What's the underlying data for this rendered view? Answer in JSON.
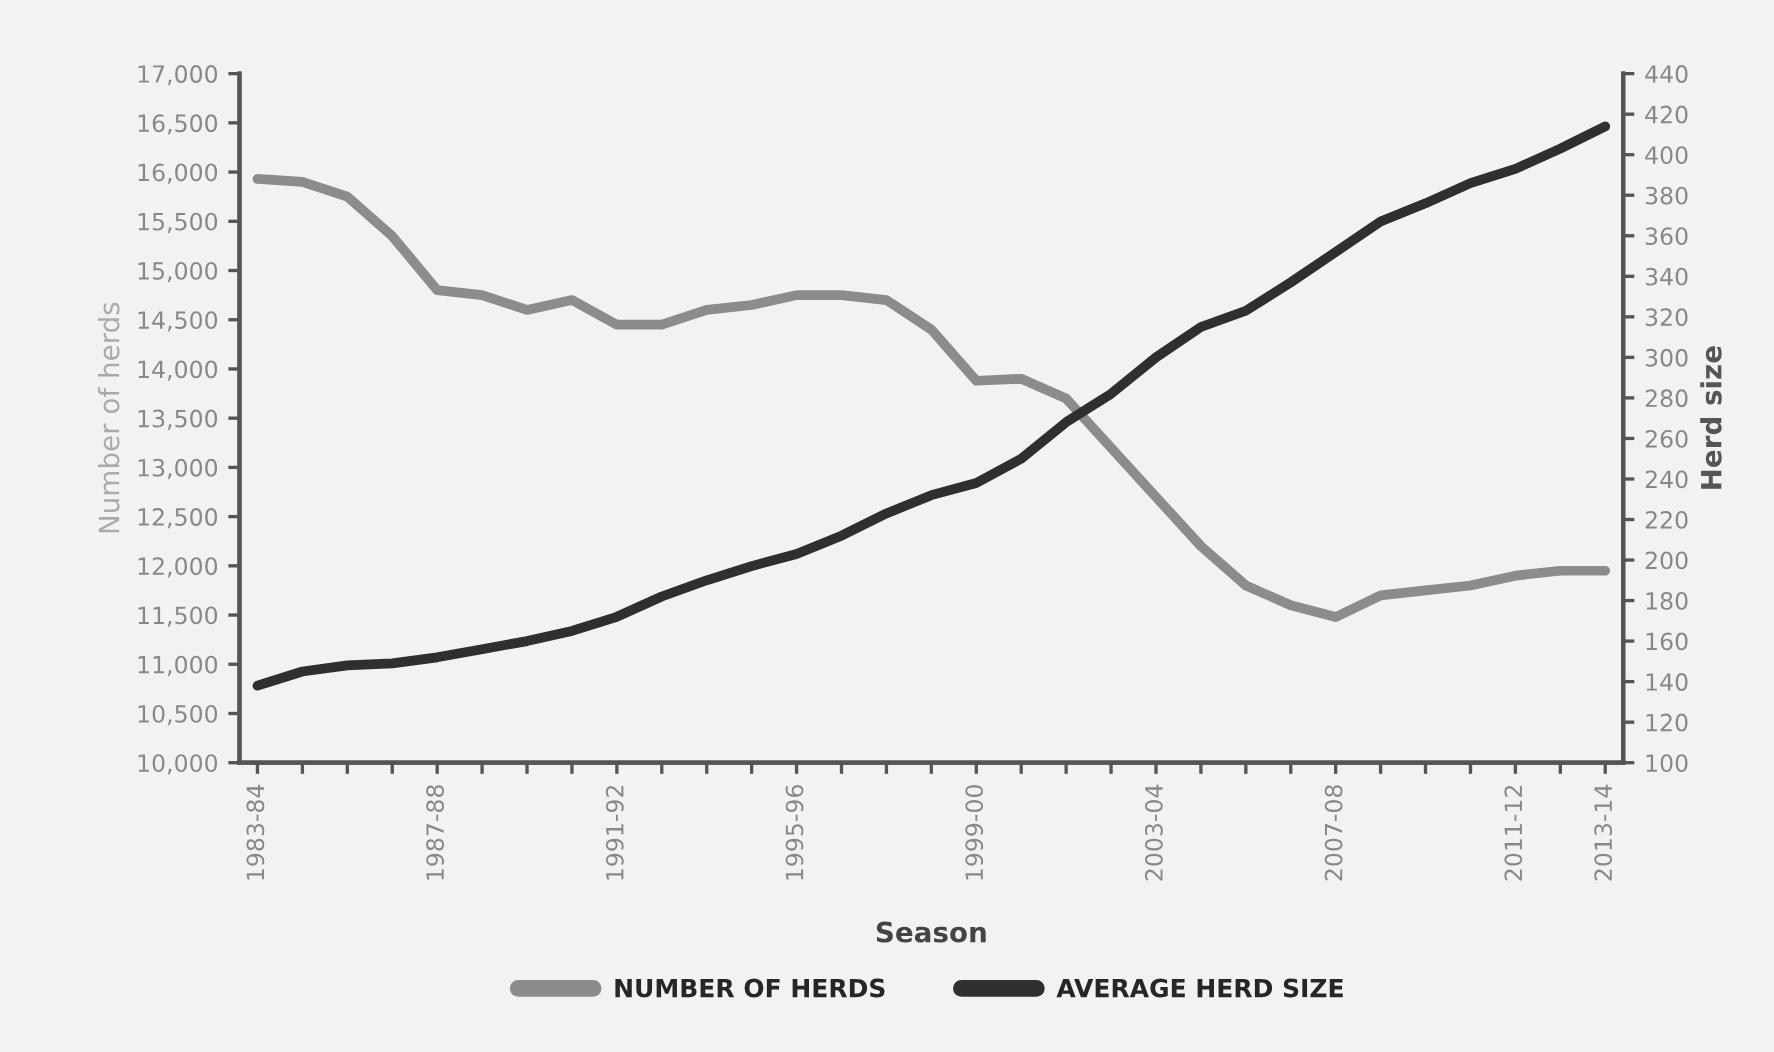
{
  "chart_data": {
    "type": "line",
    "xlabel": "Season",
    "ylabel": "Number of herds",
    "y2label": "Herd size",
    "categories": [
      "1983-84",
      null,
      null,
      null,
      "1987-88",
      null,
      null,
      null,
      "1991-92",
      null,
      null,
      null,
      "1995-96",
      null,
      null,
      null,
      "1999-00",
      null,
      null,
      null,
      "2003-04",
      null,
      null,
      null,
      "2007-08",
      null,
      null,
      null,
      "2011-12",
      null,
      "2013-14"
    ],
    "series": [
      {
        "name": "NUMBER OF HERDS",
        "color": "#8c8c8c",
        "values": [
          15930,
          15900,
          15750,
          15350,
          14800,
          14750,
          14600,
          14700,
          14450,
          14450,
          14600,
          14650,
          14750,
          14750,
          14700,
          14400,
          13880,
          13900,
          13700,
          13200,
          12700,
          12200,
          11800,
          11600,
          11480,
          11700,
          11750,
          11800,
          11900,
          11950,
          11950
        ]
      },
      {
        "name": "AVERAGE HERD SIZE",
        "color": "#2f2f2f",
        "axis": "y2",
        "values": [
          138,
          145,
          148,
          149,
          152,
          156,
          160,
          165,
          172,
          182,
          190,
          197,
          203,
          212,
          223,
          232,
          238,
          250,
          268,
          282,
          300,
          315,
          323,
          337,
          352,
          367,
          376,
          386,
          393,
          403,
          414
        ]
      }
    ],
    "ylim": [
      10000,
      17000
    ],
    "yticks": [
      {
        "value": 10000,
        "label": "10,000"
      },
      {
        "value": 10500,
        "label": "10,500"
      },
      {
        "value": 11000,
        "label": "11,000"
      },
      {
        "value": 11500,
        "label": "11,500"
      },
      {
        "value": 12000,
        "label": "12,000"
      },
      {
        "value": 12500,
        "label": "12,500"
      },
      {
        "value": 13000,
        "label": "13,000"
      },
      {
        "value": 13500,
        "label": "13,500"
      },
      {
        "value": 14000,
        "label": "14,000"
      },
      {
        "value": 14500,
        "label": "14,500"
      },
      {
        "value": 15000,
        "label": "15,000"
      },
      {
        "value": 15500,
        "label": "15,500"
      },
      {
        "value": 16000,
        "label": "16,000"
      },
      {
        "value": 16500,
        "label": "16,500"
      },
      {
        "value": 17000,
        "label": "17,000"
      }
    ],
    "y2lim": [
      100,
      440
    ],
    "y2ticks": [
      100,
      120,
      140,
      160,
      180,
      200,
      220,
      240,
      260,
      280,
      300,
      320,
      340,
      360,
      380,
      400,
      420,
      440
    ],
    "grid": false,
    "legend": "bottom",
    "marker": "none",
    "line_style": "solid"
  }
}
